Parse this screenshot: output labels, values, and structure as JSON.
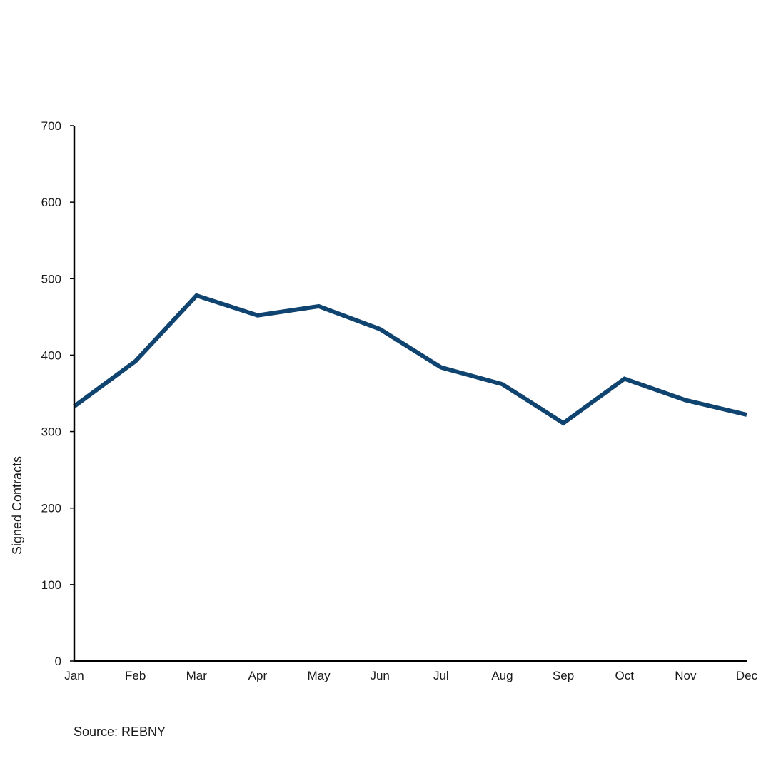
{
  "chart_data": {
    "type": "line",
    "title": "",
    "xlabel": "",
    "ylabel": "Signed Contracts",
    "categories": [
      "Jan",
      "Feb",
      "Mar",
      "Apr",
      "May",
      "Jun",
      "Jul",
      "Aug",
      "Sep",
      "Oct",
      "Nov",
      "Dec"
    ],
    "series": [
      {
        "values": [
          333,
          392,
          478,
          452,
          464,
          434,
          384,
          362,
          311,
          369,
          341,
          322
        ],
        "color": "#0f4470"
      }
    ],
    "ylim": [
      0,
      700
    ],
    "yticks": [
      0,
      100,
      200,
      300,
      400,
      500,
      600,
      700
    ],
    "grid": false,
    "legend": "none"
  },
  "footer": {
    "source": "Source: REBNY"
  }
}
